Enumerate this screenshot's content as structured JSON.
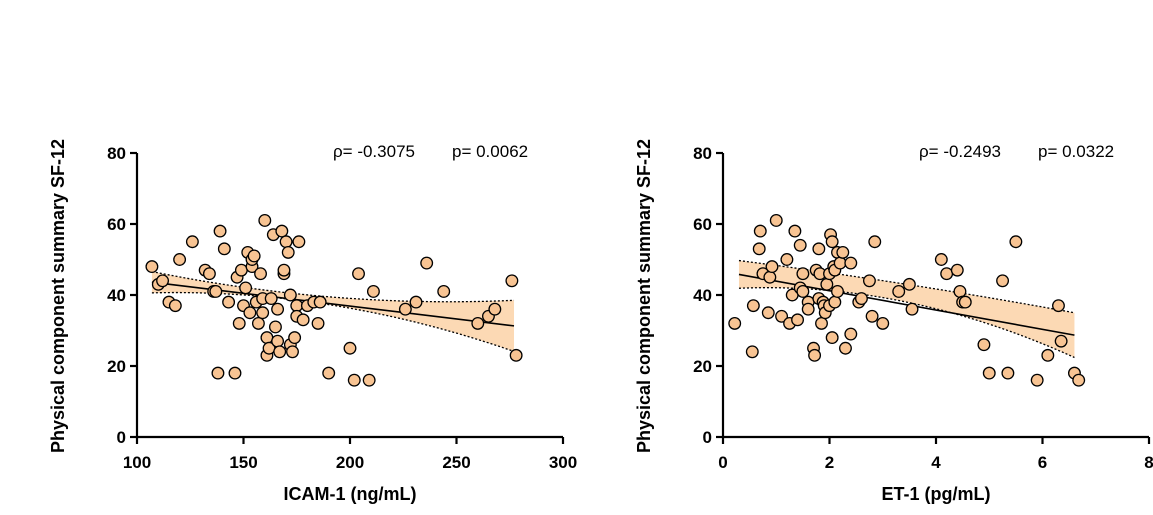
{
  "colors": {
    "point_fill": "#f8c493",
    "band_fill": "#fcd9b4",
    "ink": "#000000"
  },
  "chart_data": [
    {
      "type": "scatter",
      "xlabel": "ICAM-1 (ng/mL)",
      "ylabel": "Physical component summary SF-12",
      "xlim": [
        100,
        300
      ],
      "ylim": [
        0,
        80
      ],
      "xticks": [
        100,
        150,
        200,
        250,
        300
      ],
      "yticks": [
        0,
        20,
        40,
        60,
        80
      ],
      "x_tick_labels": [
        "100",
        "150",
        "200",
        "250",
        "300"
      ],
      "y_tick_labels": [
        "0",
        "20",
        "40",
        "60",
        "80"
      ],
      "stat_rho": "ρ= -0.3075",
      "stat_p": "p= 0.0062",
      "regression": {
        "x_start": 107,
        "y_start": 43.6,
        "x_end": 277,
        "y_end": 31.3
      },
      "ci": {
        "upper_start": 46.6,
        "upper_mid": 39.4,
        "upper_end": 38.5,
        "lower_start": 40.6,
        "lower_mid": 37.1,
        "lower_end": 24.1
      },
      "points": [
        [
          107,
          48
        ],
        [
          110,
          43
        ],
        [
          112,
          44
        ],
        [
          115,
          38
        ],
        [
          118,
          37
        ],
        [
          120,
          50
        ],
        [
          126,
          55
        ],
        [
          132,
          47
        ],
        [
          134,
          46
        ],
        [
          136,
          41
        ],
        [
          137,
          41
        ],
        [
          138,
          18
        ],
        [
          139,
          58
        ],
        [
          141,
          53
        ],
        [
          143,
          38
        ],
        [
          146,
          18
        ],
        [
          147,
          45
        ],
        [
          148,
          32
        ],
        [
          149,
          47
        ],
        [
          150,
          37
        ],
        [
          151,
          42
        ],
        [
          152,
          52
        ],
        [
          153,
          35
        ],
        [
          154,
          48
        ],
        [
          154,
          50
        ],
        [
          155,
          51
        ],
        [
          156,
          38
        ],
        [
          157,
          32
        ],
        [
          158,
          46
        ],
        [
          159,
          39
        ],
        [
          159,
          35
        ],
        [
          160,
          61
        ],
        [
          161,
          23
        ],
        [
          161,
          28
        ],
        [
          162,
          25
        ],
        [
          163,
          39
        ],
        [
          164,
          57
        ],
        [
          165,
          31
        ],
        [
          166,
          36
        ],
        [
          166,
          27
        ],
        [
          167,
          24
        ],
        [
          168,
          58
        ],
        [
          169,
          46
        ],
        [
          169,
          47
        ],
        [
          170,
          55
        ],
        [
          171,
          52
        ],
        [
          172,
          40
        ],
        [
          172,
          26
        ],
        [
          173,
          24
        ],
        [
          174,
          28
        ],
        [
          175,
          37
        ],
        [
          175,
          34
        ],
        [
          176,
          55
        ],
        [
          178,
          33
        ],
        [
          180,
          37
        ],
        [
          183,
          38
        ],
        [
          185,
          32
        ],
        [
          186,
          38
        ],
        [
          190,
          18
        ],
        [
          200,
          25
        ],
        [
          202,
          16
        ],
        [
          204,
          46
        ],
        [
          209,
          16
        ],
        [
          211,
          41
        ],
        [
          226,
          36
        ],
        [
          231,
          38
        ],
        [
          236,
          49
        ],
        [
          244,
          41
        ],
        [
          260,
          32
        ],
        [
          265,
          34
        ],
        [
          268,
          36
        ],
        [
          276,
          44
        ],
        [
          278,
          23
        ]
      ]
    },
    {
      "type": "scatter",
      "xlabel": "ET-1 (pg/mL)",
      "ylabel": "Physical component summary SF-12",
      "xlim": [
        0,
        8
      ],
      "ylim": [
        0,
        80
      ],
      "xticks": [
        0,
        2,
        4,
        6,
        8
      ],
      "yticks": [
        0,
        20,
        40,
        60,
        80
      ],
      "x_tick_labels": [
        "0",
        "2",
        "4",
        "6",
        "8"
      ],
      "y_tick_labels": [
        "0",
        "20",
        "40",
        "60",
        "80"
      ],
      "stat_rho": "ρ= -0.2493",
      "stat_p": "p= 0.0322",
      "regression": {
        "x_start": 0.3,
        "y_start": 45.8,
        "x_end": 6.6,
        "y_end": 28.7
      },
      "ci": {
        "upper_start": 49.7,
        "upper_mid": 43.0,
        "upper_end": 35.0,
        "lower_start": 41.9,
        "lower_mid": 38.0,
        "lower_end": 22.4
      },
      "points": [
        [
          0.22,
          32
        ],
        [
          0.55,
          24
        ],
        [
          0.57,
          37
        ],
        [
          0.68,
          53
        ],
        [
          0.7,
          58
        ],
        [
          0.75,
          46
        ],
        [
          0.85,
          35
        ],
        [
          0.88,
          45
        ],
        [
          0.92,
          48
        ],
        [
          1.0,
          61
        ],
        [
          1.1,
          34
        ],
        [
          1.2,
          50
        ],
        [
          1.25,
          32
        ],
        [
          1.3,
          40
        ],
        [
          1.35,
          58
        ],
        [
          1.4,
          33
        ],
        [
          1.45,
          54
        ],
        [
          1.45,
          42
        ],
        [
          1.5,
          46
        ],
        [
          1.5,
          41
        ],
        [
          1.6,
          38
        ],
        [
          1.6,
          36
        ],
        [
          1.7,
          25
        ],
        [
          1.72,
          23
        ],
        [
          1.75,
          47
        ],
        [
          1.8,
          53
        ],
        [
          1.8,
          39
        ],
        [
          1.82,
          46
        ],
        [
          1.85,
          32
        ],
        [
          1.88,
          38
        ],
        [
          1.9,
          37
        ],
        [
          1.92,
          35
        ],
        [
          1.95,
          43
        ],
        [
          2.0,
          46
        ],
        [
          2.0,
          37
        ],
        [
          2.02,
          57
        ],
        [
          2.05,
          55
        ],
        [
          2.05,
          28
        ],
        [
          2.08,
          48
        ],
        [
          2.1,
          38
        ],
        [
          2.1,
          47
        ],
        [
          2.15,
          52
        ],
        [
          2.15,
          41
        ],
        [
          2.2,
          49
        ],
        [
          2.25,
          52
        ],
        [
          2.3,
          25
        ],
        [
          2.4,
          29
        ],
        [
          2.4,
          49
        ],
        [
          2.55,
          38
        ],
        [
          2.6,
          39
        ],
        [
          2.75,
          44
        ],
        [
          2.8,
          34
        ],
        [
          2.85,
          55
        ],
        [
          3.0,
          32
        ],
        [
          3.3,
          41
        ],
        [
          3.5,
          43
        ],
        [
          3.55,
          36
        ],
        [
          4.1,
          50
        ],
        [
          4.2,
          46
        ],
        [
          4.4,
          47
        ],
        [
          4.45,
          41
        ],
        [
          4.5,
          38
        ],
        [
          4.55,
          38
        ],
        [
          4.9,
          26
        ],
        [
          5.0,
          18
        ],
        [
          5.25,
          44
        ],
        [
          5.35,
          18
        ],
        [
          5.5,
          55
        ],
        [
          5.9,
          16
        ],
        [
          6.1,
          23
        ],
        [
          6.3,
          37
        ],
        [
          6.35,
          27
        ],
        [
          6.6,
          18
        ],
        [
          6.68,
          16
        ]
      ]
    }
  ]
}
